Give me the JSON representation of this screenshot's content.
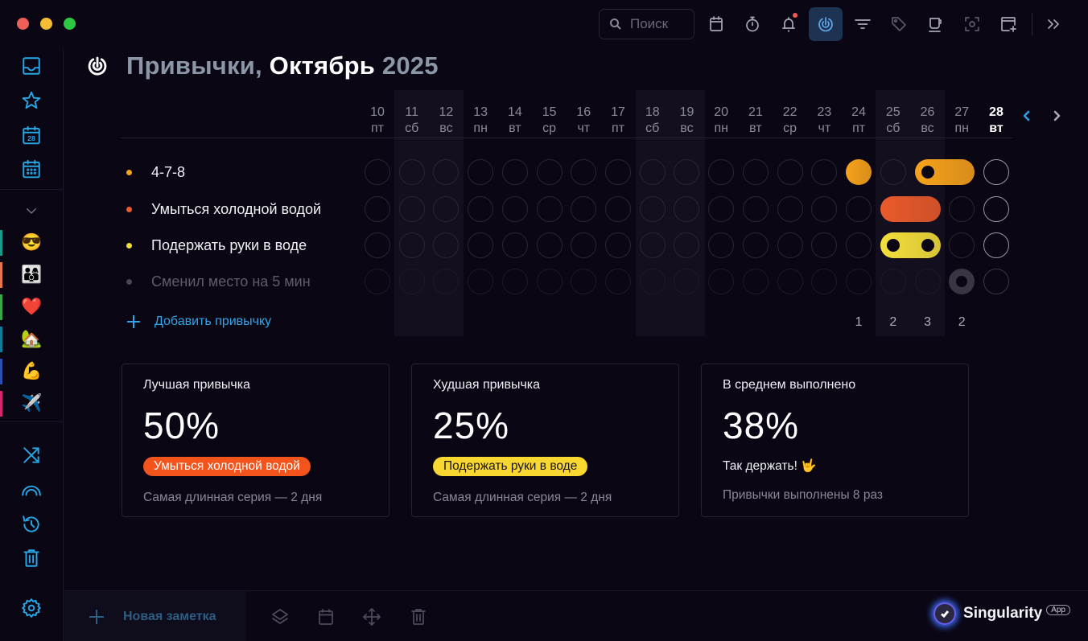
{
  "window": {
    "traffic_lights": [
      {
        "name": "close",
        "color": "#ed5f57"
      },
      {
        "name": "minimize",
        "color": "#f4bd34"
      },
      {
        "name": "maximize",
        "color": "#2bc841"
      }
    ]
  },
  "topbar": {
    "search": {
      "placeholder": "Поиск",
      "icon": "search-icon"
    },
    "buttons": [
      {
        "name": "calendar-icon",
        "active": false
      },
      {
        "name": "stopwatch-icon",
        "active": false
      },
      {
        "name": "bell-icon",
        "active": false,
        "badge": true
      },
      {
        "name": "habits-icon",
        "active": true
      },
      {
        "name": "filter-icon",
        "active": false
      },
      {
        "name": "tag-icon",
        "active": false
      },
      {
        "name": "coffee-cup-icon",
        "active": false
      },
      {
        "name": "focus-icon",
        "active": false
      },
      {
        "name": "new-window-icon",
        "active": false
      },
      {
        "name": "expand-panel-icon",
        "active": false
      }
    ]
  },
  "sidebar": {
    "nav": [
      {
        "name": "inbox-icon"
      },
      {
        "name": "star-icon"
      },
      {
        "name": "today-calendar-icon",
        "day": "28"
      },
      {
        "name": "calendar-grid-icon"
      }
    ],
    "collapse_icon": "chevron-down-icon",
    "projects": [
      {
        "emoji": "😎",
        "strip_color": "#1a9a8a"
      },
      {
        "emoji": "👨‍👩‍👦",
        "strip_color": "#e6744f"
      },
      {
        "emoji": "❤️",
        "strip_color": "#3aa64a"
      },
      {
        "emoji": "🏡",
        "strip_color": "#147a9a"
      },
      {
        "emoji": "💪",
        "strip_color": "#2f4fb0"
      },
      {
        "emoji": "✈️",
        "strip_color": "#d0286a"
      }
    ],
    "tools": [
      {
        "name": "shuffle-icon"
      },
      {
        "name": "rainbow-icon"
      },
      {
        "name": "history-icon"
      },
      {
        "name": "trash-icon"
      }
    ],
    "settings_icon": "gear-icon"
  },
  "header": {
    "title_prefix": "Привычки,",
    "month": "Октябрь",
    "year": "2025"
  },
  "calendar": {
    "days": [
      {
        "date": "10",
        "weekday": "пт",
        "weekend": false
      },
      {
        "date": "11",
        "weekday": "сб",
        "weekend": true
      },
      {
        "date": "12",
        "weekday": "вс",
        "weekend": true
      },
      {
        "date": "13",
        "weekday": "пн",
        "weekend": false
      },
      {
        "date": "14",
        "weekday": "вт",
        "weekend": false
      },
      {
        "date": "15",
        "weekday": "ср",
        "weekend": false
      },
      {
        "date": "16",
        "weekday": "чт",
        "weekend": false
      },
      {
        "date": "17",
        "weekday": "пт",
        "weekend": false
      },
      {
        "date": "18",
        "weekday": "сб",
        "weekend": true
      },
      {
        "date": "19",
        "weekday": "вс",
        "weekend": true
      },
      {
        "date": "20",
        "weekday": "пн",
        "weekend": false
      },
      {
        "date": "21",
        "weekday": "вт",
        "weekend": false
      },
      {
        "date": "22",
        "weekday": "ср",
        "weekend": false
      },
      {
        "date": "23",
        "weekday": "чт",
        "weekend": false
      },
      {
        "date": "24",
        "weekday": "пт",
        "weekend": false
      },
      {
        "date": "25",
        "weekday": "сб",
        "weekend": true
      },
      {
        "date": "26",
        "weekday": "вс",
        "weekend": true
      },
      {
        "date": "27",
        "weekday": "пн",
        "weekend": false
      },
      {
        "date": "28",
        "weekday": "вт",
        "weekend": false,
        "today": true
      }
    ],
    "prev_icon": "chevron-left-icon",
    "next_icon": "chevron-right-icon",
    "daily_counts": [
      {
        "date": "24",
        "count": "1"
      },
      {
        "date": "25",
        "count": "2"
      },
      {
        "date": "26",
        "count": "3"
      },
      {
        "date": "27",
        "count": "2"
      }
    ]
  },
  "habits": [
    {
      "name": "4-7-8",
      "color": "#f7a21b",
      "muted": false,
      "done_dates": [
        "24",
        "26",
        "27"
      ]
    },
    {
      "name": "Умыться холодной водой",
      "color": "#ea5a2b",
      "muted": false,
      "done_dates": [
        "25",
        "26"
      ]
    },
    {
      "name": "Подержать руки в воде",
      "color": "#f4df3a",
      "muted": false,
      "done_dates": [
        "25",
        "26"
      ]
    },
    {
      "name": "Сменил место на 5 мин",
      "color": "#4a4654",
      "muted": true,
      "done_dates": [
        "27"
      ]
    }
  ],
  "add_habit_label": "Добавить привычку",
  "stats": [
    {
      "label": "Лучшая привычка",
      "value": "50%",
      "pill": "Умыться холодной водой",
      "pill_bg": "#f2541b",
      "pill_fg": "#ffffff",
      "footer": "Самая длинная серия — 2 дня"
    },
    {
      "label": "Худшая привычка",
      "value": "25%",
      "pill": "Подержать руки в воде",
      "pill_bg": "#f8d731",
      "pill_fg": "#1a1420",
      "footer": "Самая длинная серия — 2 дня"
    },
    {
      "label": "В среднем выполнено",
      "value": "38%",
      "text": "Так держать! 🤟",
      "footer": "Привычки выполнены 8 раз"
    }
  ],
  "bottombar": {
    "new_note_label": "Новая заметка",
    "icons": [
      "layers-icon",
      "calendar-icon",
      "move-icon",
      "trash-icon"
    ],
    "brand": {
      "name": "Singularity",
      "tag": "App"
    }
  },
  "colors": {
    "accent": "#27a6e6",
    "background": "#0b0614",
    "weekend_band": "#140f1e"
  }
}
